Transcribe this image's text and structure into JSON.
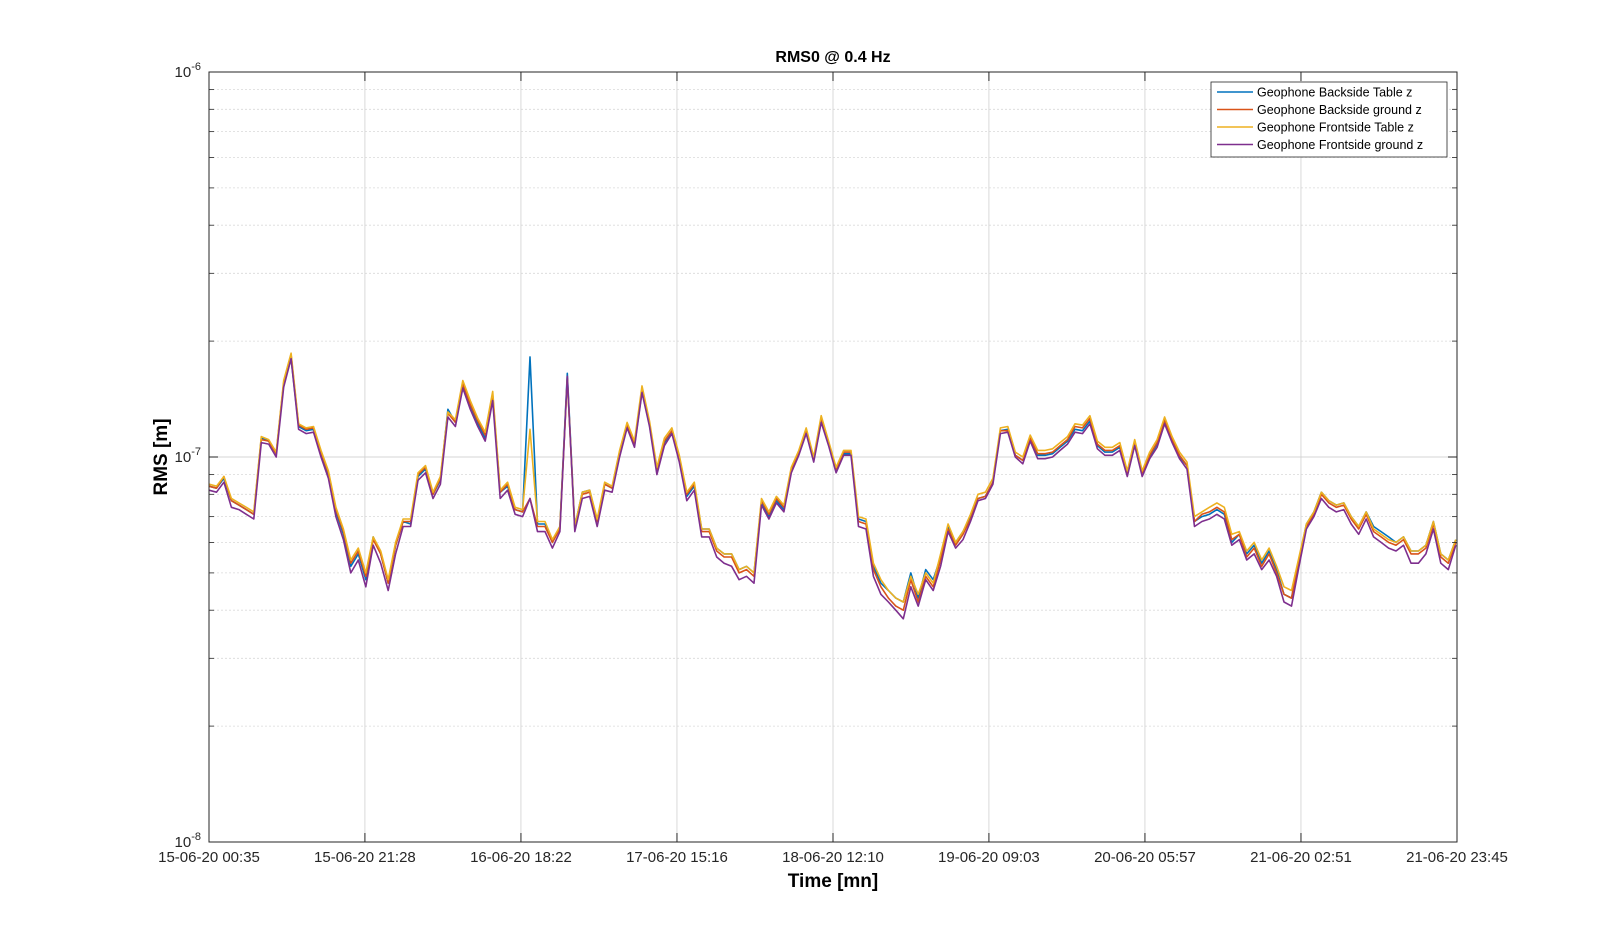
{
  "chart_data": {
    "type": "line",
    "title": "RMS0 @ 0.4 Hz",
    "xlabel": "Time [mn]",
    "ylabel": "RMS [m]",
    "yscale": "log",
    "ylim": [
      1e-08,
      1e-06
    ],
    "xlim": [
      "15-06-20 00:35",
      "21-06-20 23:45"
    ],
    "y_ticks": [
      {
        "value": 1e-08,
        "mantissa": "10",
        "exp": "-8"
      },
      {
        "value": 1e-07,
        "mantissa": "10",
        "exp": "-7"
      },
      {
        "value": 1e-06,
        "mantissa": "10",
        "exp": "-6"
      }
    ],
    "x_tick_labels": [
      "15-06-20 00:35",
      "15-06-20 21:28",
      "16-06-20 18:22",
      "17-06-20 15:16",
      "18-06-20 12:10",
      "19-06-20 09:03",
      "20-06-20 05:57",
      "21-06-20 02:51",
      "21-06-20 23:45"
    ],
    "grid": true,
    "legend_position": "top-right",
    "x": [
      "15-06-20 00:35",
      "15-06-20 01:35",
      "15-06-20 02:35",
      "15-06-20 03:35",
      "15-06-20 04:35",
      "15-06-20 05:35",
      "15-06-20 06:35",
      "15-06-20 07:35",
      "15-06-20 08:35",
      "15-06-20 09:35",
      "15-06-20 10:35",
      "15-06-20 11:35",
      "15-06-20 12:35",
      "15-06-20 13:35",
      "15-06-20 14:35",
      "15-06-20 15:35",
      "15-06-20 16:35",
      "15-06-20 17:35",
      "15-06-20 18:35",
      "15-06-20 19:35",
      "15-06-20 20:35",
      "15-06-20 21:35",
      "15-06-20 22:35",
      "15-06-20 23:35",
      "16-06-20 00:35",
      "16-06-20 01:35",
      "16-06-20 02:35",
      "16-06-20 03:35",
      "16-06-20 04:35",
      "16-06-20 05:35",
      "16-06-20 06:35",
      "16-06-20 07:35",
      "16-06-20 08:35",
      "16-06-20 09:35",
      "16-06-20 10:35",
      "16-06-20 11:35",
      "16-06-20 12:35",
      "16-06-20 13:35",
      "16-06-20 14:35",
      "16-06-20 15:35",
      "16-06-20 16:35",
      "16-06-20 17:35",
      "16-06-20 18:35",
      "16-06-20 19:35",
      "16-06-20 20:35",
      "16-06-20 21:35",
      "16-06-20 22:35",
      "16-06-20 23:35",
      "17-06-20 00:35",
      "17-06-20 01:35",
      "17-06-20 02:35",
      "17-06-20 03:35",
      "17-06-20 04:35",
      "17-06-20 05:35",
      "17-06-20 06:35",
      "17-06-20 07:35",
      "17-06-20 08:35",
      "17-06-20 09:35",
      "17-06-20 10:35",
      "17-06-20 11:35",
      "17-06-20 12:35",
      "17-06-20 13:35",
      "17-06-20 14:35",
      "17-06-20 15:35",
      "17-06-20 16:35",
      "17-06-20 17:35",
      "17-06-20 18:35",
      "17-06-20 19:35",
      "17-06-20 20:35",
      "17-06-20 21:35",
      "17-06-20 22:35",
      "17-06-20 23:35",
      "18-06-20 00:35",
      "18-06-20 01:35",
      "18-06-20 02:35",
      "18-06-20 03:35",
      "18-06-20 04:35",
      "18-06-20 05:35",
      "18-06-20 06:35",
      "18-06-20 07:35",
      "18-06-20 08:35",
      "18-06-20 09:35",
      "18-06-20 10:35",
      "18-06-20 11:35",
      "18-06-20 12:35",
      "18-06-20 13:35",
      "18-06-20 14:35",
      "18-06-20 15:35",
      "18-06-20 16:35",
      "18-06-20 17:35",
      "18-06-20 18:35",
      "18-06-20 19:35",
      "18-06-20 20:35",
      "18-06-20 21:35",
      "18-06-20 22:35",
      "18-06-20 23:35",
      "19-06-20 00:35",
      "19-06-20 01:35",
      "19-06-20 02:35",
      "19-06-20 03:35",
      "19-06-20 04:35",
      "19-06-20 05:35",
      "19-06-20 06:35",
      "19-06-20 07:35",
      "19-06-20 08:35",
      "19-06-20 09:35",
      "19-06-20 10:35",
      "19-06-20 11:35",
      "19-06-20 12:35",
      "19-06-20 13:35",
      "19-06-20 14:35",
      "19-06-20 15:35",
      "19-06-20 16:35",
      "19-06-20 17:35",
      "19-06-20 18:35",
      "19-06-20 19:35",
      "19-06-20 20:35",
      "19-06-20 21:35",
      "19-06-20 22:35",
      "19-06-20 23:35",
      "20-06-20 00:35",
      "20-06-20 01:35",
      "20-06-20 02:35",
      "20-06-20 03:35",
      "20-06-20 04:35",
      "20-06-20 05:35",
      "20-06-20 06:35",
      "20-06-20 07:35",
      "20-06-20 08:35",
      "20-06-20 09:35",
      "20-06-20 10:35",
      "20-06-20 11:35",
      "20-06-20 12:35",
      "20-06-20 13:35",
      "20-06-20 14:35",
      "20-06-20 15:35",
      "20-06-20 16:35",
      "20-06-20 17:35",
      "20-06-20 18:35",
      "20-06-20 19:35",
      "20-06-20 20:35",
      "20-06-20 21:35",
      "20-06-20 22:35",
      "20-06-20 23:35",
      "21-06-20 00:35",
      "21-06-20 01:35",
      "21-06-20 02:35",
      "21-06-20 03:35",
      "21-06-20 04:35",
      "21-06-20 05:35",
      "21-06-20 06:35",
      "21-06-20 07:35",
      "21-06-20 08:35",
      "21-06-20 09:35",
      "21-06-20 10:35",
      "21-06-20 11:35",
      "21-06-20 12:35",
      "21-06-20 13:35",
      "21-06-20 14:35",
      "21-06-20 15:35",
      "21-06-20 16:35",
      "21-06-20 17:35",
      "21-06-20 18:35",
      "21-06-20 19:35",
      "21-06-20 20:35",
      "21-06-20 21:35",
      "21-06-20 22:35",
      "21-06-20 23:35"
    ],
    "series": [
      {
        "name": "Geophone Backside Table z",
        "color": "#0072BD",
        "values": [
          8.4e-08,
          8.3e-08,
          8.8e-08,
          7.7e-08,
          7.5e-08,
          7.3e-08,
          7.1e-08,
          1.12e-07,
          1.1e-07,
          1.02e-07,
          1.55e-07,
          1.8e-07,
          1.2e-07,
          1.17e-07,
          1.18e-07,
          1.02e-07,
          8.9e-08,
          7.2e-08,
          6.3e-08,
          5.2e-08,
          5.6e-08,
          4.8e-08,
          6.2e-08,
          5.6e-08,
          4.7e-08,
          5.9e-08,
          6.8e-08,
          6.7e-08,
          8.9e-08,
          9.3e-08,
          8e-08,
          8.7e-08,
          1.33e-07,
          1.23e-07,
          1.52e-07,
          1.36e-07,
          1.22e-07,
          1.12e-07,
          1.43e-07,
          8.1e-08,
          8.4e-08,
          7.3e-08,
          7.2e-08,
          1.82e-07,
          6.7e-08,
          6.7e-08,
          6e-08,
          6.6e-08,
          1.65e-07,
          6.6e-08,
          8.1e-08,
          8.2e-08,
          6.8e-08,
          8.5e-08,
          8.3e-08,
          1.02e-07,
          1.2e-07,
          1.07e-07,
          1.48e-07,
          1.21e-07,
          9.2e-08,
          1.09e-07,
          1.16e-07,
          9.9e-08,
          7.9e-08,
          8.4e-08,
          6.5e-08,
          6.5e-08,
          5.8e-08,
          5.6e-08,
          5.6e-08,
          5.1e-08,
          5.2e-08,
          5e-08,
          7.6e-08,
          7e-08,
          7.7e-08,
          7.3e-08,
          9.2e-08,
          1.02e-07,
          1.16e-07,
          9.8e-08,
          1.24e-07,
          1.08e-07,
          9.2e-08,
          1.02e-07,
          1.02e-07,
          6.9e-08,
          6.8e-08,
          5.2e-08,
          4.7e-08,
          4.5e-08,
          4.3e-08,
          4.2e-08,
          5e-08,
          4.3e-08,
          5.1e-08,
          4.8e-08,
          5.5e-08,
          6.6e-08,
          6e-08,
          6.4e-08,
          7e-08,
          7.8e-08,
          7.9e-08,
          8.6e-08,
          1.17e-07,
          1.18e-07,
          1.01e-07,
          9.8e-08,
          1.11e-07,
          1.01e-07,
          1.01e-07,
          1.02e-07,
          1.06e-07,
          1.1e-07,
          1.18e-07,
          1.17e-07,
          1.24e-07,
          1.07e-07,
          1.03e-07,
          1.03e-07,
          1.06e-07,
          9e-08,
          1.1e-07,
          9.1e-08,
          1e-07,
          1.08e-07,
          1.24e-07,
          1.1e-07,
          1e-07,
          9.5e-08,
          6.8e-08,
          7e-08,
          7.1e-08,
          7.3e-08,
          7.1e-08,
          6e-08,
          6.3e-08,
          5.6e-08,
          5.9e-08,
          5.3e-08,
          5.7e-08,
          5.1e-08,
          4.4e-08,
          4.3e-08,
          5.4e-08,
          6.7e-08,
          7.2e-08,
          8.1e-08,
          7.7e-08,
          7.5e-08,
          7.6e-08,
          7e-08,
          6.6e-08,
          7.2e-08,
          6.6e-08,
          6.4e-08,
          6.2e-08,
          6e-08,
          6.2e-08,
          5.7e-08,
          5.7e-08,
          5.9e-08,
          6.8e-08,
          5.6e-08,
          5.4e-08,
          6.1e-08
        ]
      },
      {
        "name": "Geophone Backside ground z",
        "color": "#D95319",
        "values": [
          8.4e-08,
          8.3e-08,
          8.9e-08,
          7.7e-08,
          7.5e-08,
          7.3e-08,
          7.1e-08,
          1.11e-07,
          1.1e-07,
          1.02e-07,
          1.56e-07,
          1.84e-07,
          1.21e-07,
          1.18e-07,
          1.19e-07,
          1.03e-07,
          9.1e-08,
          7.3e-08,
          6.4e-08,
          5.3e-08,
          5.7e-08,
          4.9e-08,
          6.1e-08,
          5.6e-08,
          4.7e-08,
          5.9e-08,
          6.8e-08,
          6.8e-08,
          9e-08,
          9.4e-08,
          8e-08,
          8.8e-08,
          1.3e-07,
          1.23e-07,
          1.55e-07,
          1.37e-07,
          1.24e-07,
          1.14e-07,
          1.45e-07,
          8.1e-08,
          8.5e-08,
          7.3e-08,
          7.2e-08,
          7.8e-08,
          6.6e-08,
          6.6e-08,
          6e-08,
          6.5e-08,
          1.6e-07,
          6.5e-08,
          8e-08,
          8.1e-08,
          6.8e-08,
          8.5e-08,
          8.3e-08,
          1.02e-07,
          1.21e-07,
          1.08e-07,
          1.5e-07,
          1.22e-07,
          9.3e-08,
          1.1e-07,
          1.17e-07,
          1e-07,
          8e-08,
          8.5e-08,
          6.4e-08,
          6.4e-08,
          5.7e-08,
          5.5e-08,
          5.5e-08,
          5e-08,
          5.1e-08,
          4.9e-08,
          7.7e-08,
          7.1e-08,
          7.8e-08,
          7.4e-08,
          9.3e-08,
          1.03e-07,
          1.17e-07,
          9.9e-08,
          1.26e-07,
          1.09e-07,
          9.3e-08,
          1.03e-07,
          1.03e-07,
          6.8e-08,
          6.7e-08,
          5.1e-08,
          4.6e-08,
          4.3e-08,
          4.1e-08,
          4e-08,
          4.8e-08,
          4.2e-08,
          4.9e-08,
          4.6e-08,
          5.4e-08,
          6.5e-08,
          5.9e-08,
          6.3e-08,
          6.9e-08,
          7.8e-08,
          7.9e-08,
          8.6e-08,
          1.17e-07,
          1.17e-07,
          1.01e-07,
          9.8e-08,
          1.12e-07,
          1.02e-07,
          1.02e-07,
          1.03e-07,
          1.07e-07,
          1.11e-07,
          1.2e-07,
          1.19e-07,
          1.26e-07,
          1.08e-07,
          1.04e-07,
          1.04e-07,
          1.07e-07,
          9.1e-08,
          1.09e-07,
          9.1e-08,
          1.01e-07,
          1.09e-07,
          1.25e-07,
          1.11e-07,
          1.01e-07,
          9.5e-08,
          6.8e-08,
          7.1e-08,
          7.2e-08,
          7.4e-08,
          7.2e-08,
          6.1e-08,
          6.3e-08,
          5.5e-08,
          5.8e-08,
          5.2e-08,
          5.6e-08,
          5e-08,
          4.4e-08,
          4.3e-08,
          5.4e-08,
          6.6e-08,
          7.1e-08,
          8e-08,
          7.6e-08,
          7.4e-08,
          7.5e-08,
          6.9e-08,
          6.5e-08,
          7.1e-08,
          6.4e-08,
          6.2e-08,
          6e-08,
          5.9e-08,
          6.1e-08,
          5.6e-08,
          5.6e-08,
          5.8e-08,
          6.7e-08,
          5.5e-08,
          5.3e-08,
          6e-08
        ]
      },
      {
        "name": "Geophone Frontside Table z",
        "color": "#EDB120",
        "values": [
          8.5e-08,
          8.4e-08,
          8.9e-08,
          7.8e-08,
          7.6e-08,
          7.4e-08,
          7.2e-08,
          1.13e-07,
          1.11e-07,
          1.03e-07,
          1.58e-07,
          1.86e-07,
          1.22e-07,
          1.19e-07,
          1.2e-07,
          1.04e-07,
          9.2e-08,
          7.4e-08,
          6.5e-08,
          5.4e-08,
          5.8e-08,
          5e-08,
          6.2e-08,
          5.7e-08,
          4.8e-08,
          6e-08,
          6.9e-08,
          6.9e-08,
          9.1e-08,
          9.5e-08,
          8.1e-08,
          8.9e-08,
          1.31e-07,
          1.25e-07,
          1.58e-07,
          1.4e-07,
          1.26e-07,
          1.16e-07,
          1.48e-07,
          8.2e-08,
          8.6e-08,
          7.4e-08,
          7.3e-08,
          1.18e-07,
          6.8e-08,
          6.8e-08,
          6.1e-08,
          6.6e-08,
          1.6e-07,
          6.6e-08,
          8.1e-08,
          8.2e-08,
          6.9e-08,
          8.6e-08,
          8.4e-08,
          1.04e-07,
          1.23e-07,
          1.1e-07,
          1.53e-07,
          1.24e-07,
          9.4e-08,
          1.12e-07,
          1.19e-07,
          1.01e-07,
          8.1e-08,
          8.6e-08,
          6.5e-08,
          6.5e-08,
          5.8e-08,
          5.6e-08,
          5.6e-08,
          5.1e-08,
          5.2e-08,
          5e-08,
          7.8e-08,
          7.2e-08,
          7.9e-08,
          7.5e-08,
          9.4e-08,
          1.04e-07,
          1.19e-07,
          1e-07,
          1.28e-07,
          1.1e-07,
          9.4e-08,
          1.04e-07,
          1.04e-07,
          7e-08,
          6.9e-08,
          5.3e-08,
          4.8e-08,
          4.5e-08,
          4.3e-08,
          4.2e-08,
          4.9e-08,
          4.4e-08,
          5e-08,
          4.7e-08,
          5.6e-08,
          6.7e-08,
          6e-08,
          6.4e-08,
          7.1e-08,
          8e-08,
          8.1e-08,
          8.8e-08,
          1.19e-07,
          1.2e-07,
          1.03e-07,
          1e-07,
          1.14e-07,
          1.04e-07,
          1.04e-07,
          1.05e-07,
          1.09e-07,
          1.13e-07,
          1.22e-07,
          1.21e-07,
          1.28e-07,
          1.1e-07,
          1.06e-07,
          1.06e-07,
          1.09e-07,
          9.2e-08,
          1.11e-07,
          9.2e-08,
          1.03e-07,
          1.11e-07,
          1.27e-07,
          1.13e-07,
          1.03e-07,
          9.7e-08,
          7e-08,
          7.2e-08,
          7.4e-08,
          7.6e-08,
          7.4e-08,
          6.3e-08,
          6.4e-08,
          5.7e-08,
          6e-08,
          5.4e-08,
          5.8e-08,
          5.2e-08,
          4.6e-08,
          4.5e-08,
          5.5e-08,
          6.7e-08,
          7.2e-08,
          8.1e-08,
          7.7e-08,
          7.5e-08,
          7.6e-08,
          7e-08,
          6.6e-08,
          7.2e-08,
          6.5e-08,
          6.3e-08,
          6.1e-08,
          6e-08,
          6.2e-08,
          5.7e-08,
          5.7e-08,
          5.9e-08,
          6.8e-08,
          5.6e-08,
          5.4e-08,
          6.1e-08
        ]
      },
      {
        "name": "Geophone Frontside ground z",
        "color": "#7E2F8E",
        "values": [
          8.2e-08,
          8.1e-08,
          8.6e-08,
          7.4e-08,
          7.3e-08,
          7.1e-08,
          6.9e-08,
          1.09e-07,
          1.08e-07,
          1e-07,
          1.52e-07,
          1.8e-07,
          1.18e-07,
          1.15e-07,
          1.16e-07,
          1e-07,
          8.8e-08,
          7e-08,
          6.1e-08,
          5e-08,
          5.4e-08,
          4.6e-08,
          5.9e-08,
          5.3e-08,
          4.5e-08,
          5.6e-08,
          6.6e-08,
          6.6e-08,
          8.7e-08,
          9.1e-08,
          7.8e-08,
          8.5e-08,
          1.27e-07,
          1.2e-07,
          1.51e-07,
          1.33e-07,
          1.2e-07,
          1.1e-07,
          1.4e-07,
          7.8e-08,
          8.2e-08,
          7.1e-08,
          7e-08,
          7.8e-08,
          6.4e-08,
          6.4e-08,
          5.8e-08,
          6.4e-08,
          1.62e-07,
          6.4e-08,
          7.8e-08,
          7.9e-08,
          6.6e-08,
          8.2e-08,
          8.1e-08,
          1e-07,
          1.19e-07,
          1.06e-07,
          1.47e-07,
          1.2e-07,
          9e-08,
          1.07e-07,
          1.15e-07,
          9.7e-08,
          7.7e-08,
          8.2e-08,
          6.2e-08,
          6.2e-08,
          5.5e-08,
          5.3e-08,
          5.2e-08,
          4.8e-08,
          4.9e-08,
          4.7e-08,
          7.5e-08,
          6.9e-08,
          7.6e-08,
          7.2e-08,
          9.1e-08,
          1.01e-07,
          1.15e-07,
          9.7e-08,
          1.23e-07,
          1.07e-07,
          9.1e-08,
          1.01e-07,
          1.01e-07,
          6.6e-08,
          6.5e-08,
          4.9e-08,
          4.4e-08,
          4.2e-08,
          4e-08,
          3.8e-08,
          4.6e-08,
          4.1e-08,
          4.8e-08,
          4.5e-08,
          5.2e-08,
          6.4e-08,
          5.8e-08,
          6.1e-08,
          6.8e-08,
          7.7e-08,
          7.8e-08,
          8.5e-08,
          1.15e-07,
          1.16e-07,
          1e-07,
          9.6e-08,
          1.1e-07,
          9.9e-08,
          9.9e-08,
          1e-07,
          1.04e-07,
          1.08e-07,
          1.16e-07,
          1.15e-07,
          1.22e-07,
          1.05e-07,
          1.01e-07,
          1.01e-07,
          1.04e-07,
          8.9e-08,
          1.07e-07,
          8.9e-08,
          9.9e-08,
          1.06e-07,
          1.22e-07,
          1.09e-07,
          9.9e-08,
          9.3e-08,
          6.6e-08,
          6.8e-08,
          6.9e-08,
          7.1e-08,
          6.9e-08,
          5.9e-08,
          6.1e-08,
          5.4e-08,
          5.6e-08,
          5.1e-08,
          5.4e-08,
          4.9e-08,
          4.2e-08,
          4.1e-08,
          5.2e-08,
          6.5e-08,
          7e-08,
          7.8e-08,
          7.4e-08,
          7.2e-08,
          7.3e-08,
          6.7e-08,
          6.3e-08,
          6.9e-08,
          6.2e-08,
          6e-08,
          5.8e-08,
          5.7e-08,
          5.9e-08,
          5.3e-08,
          5.3e-08,
          5.6e-08,
          6.5e-08,
          5.3e-08,
          5.1e-08,
          5.9e-08
        ]
      }
    ]
  }
}
